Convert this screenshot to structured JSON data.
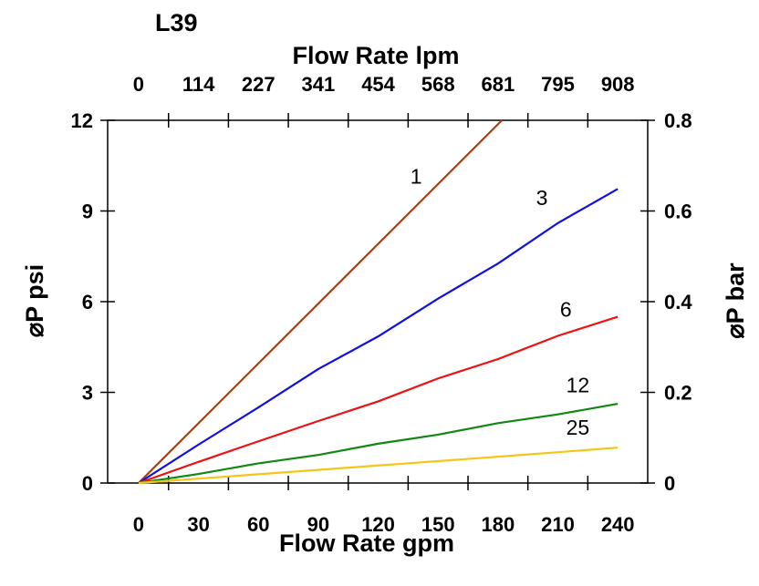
{
  "chart_data": {
    "type": "line",
    "title": "L39",
    "xlabel": "Flow Rate gpm",
    "x2label": "Flow Rate lpm",
    "ylabel": "⌀P psi",
    "y2label": "⌀P bar",
    "xticks": [
      0,
      30,
      60,
      90,
      120,
      150,
      180,
      210,
      240
    ],
    "x2ticks": [
      "0",
      "114",
      "227",
      "341",
      "454",
      "568",
      "681",
      "795",
      "908"
    ],
    "yticks": [
      0,
      3,
      6,
      9,
      12
    ],
    "y2ticks": [
      "0",
      "0.2",
      "0.4",
      "0.6",
      "0.8"
    ],
    "xlim": [
      -15.5,
      255
    ],
    "ylim": [
      0,
      12
    ],
    "grid": false,
    "series": [
      {
        "name": "1",
        "color": "#a0421a",
        "x": [
          0,
          182
        ],
        "y": [
          0,
          12
        ]
      },
      {
        "name": "3",
        "color": "#1010e0",
        "x": [
          0,
          30,
          60,
          90,
          120,
          150,
          180,
          210,
          240
        ],
        "y": [
          0,
          1.27,
          2.5,
          3.77,
          4.85,
          6.1,
          7.26,
          8.6,
          9.73
        ]
      },
      {
        "name": "6",
        "color": "#ee1111",
        "x": [
          0,
          30,
          60,
          90,
          120,
          150,
          180,
          210,
          240
        ],
        "y": [
          0,
          0.7,
          1.38,
          2.05,
          2.7,
          3.46,
          4.1,
          4.87,
          5.5
        ]
      },
      {
        "name": "12",
        "color": "#118811",
        "x": [
          0,
          30,
          60,
          90,
          120,
          150,
          180,
          210,
          240
        ],
        "y": [
          0,
          0.3,
          0.65,
          0.93,
          1.3,
          1.6,
          1.98,
          2.27,
          2.62
        ]
      },
      {
        "name": "25",
        "color": "#f5c518",
        "x": [
          0,
          60,
          120,
          180,
          240
        ],
        "y": [
          0,
          0.29,
          0.58,
          0.87,
          1.17
        ]
      }
    ],
    "series_labels": [
      {
        "text": "1",
        "x": 139,
        "y": 9.9
      },
      {
        "text": "3",
        "x": 202,
        "y": 9.2
      },
      {
        "text": "6",
        "x": 214,
        "y": 5.5
      },
      {
        "text": "12",
        "x": 220,
        "y": 3.0
      },
      {
        "text": "25",
        "x": 220,
        "y": 1.6
      }
    ]
  }
}
